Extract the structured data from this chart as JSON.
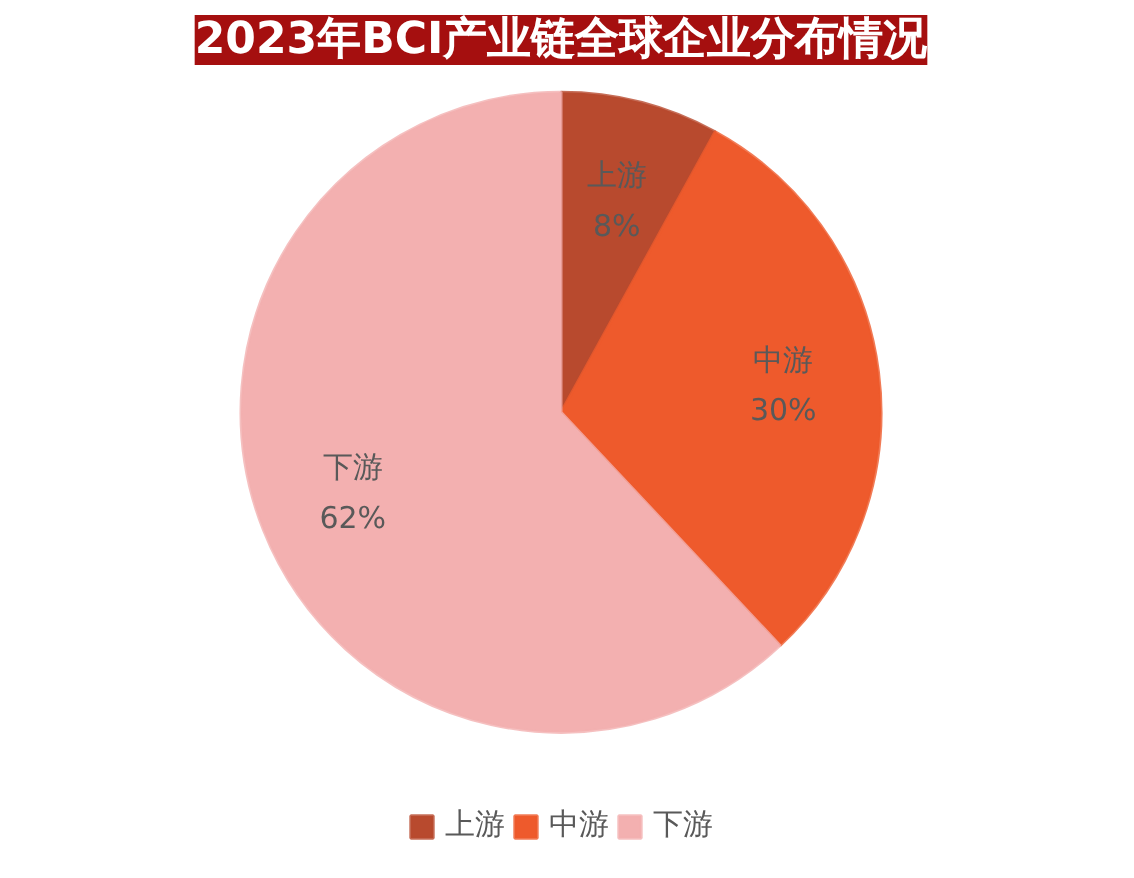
{
  "chart_data": {
    "type": "pie",
    "title": "2023年BCI产业链全球企业分布情况",
    "categories": [
      "上游",
      "中游",
      "下游"
    ],
    "values": [
      8,
      30,
      62
    ],
    "colors": [
      "#b84a2e",
      "#ee5a2c",
      "#f3b0b0"
    ],
    "value_labels": [
      "8%",
      "30%",
      "62%"
    ],
    "legend": "bottom"
  }
}
